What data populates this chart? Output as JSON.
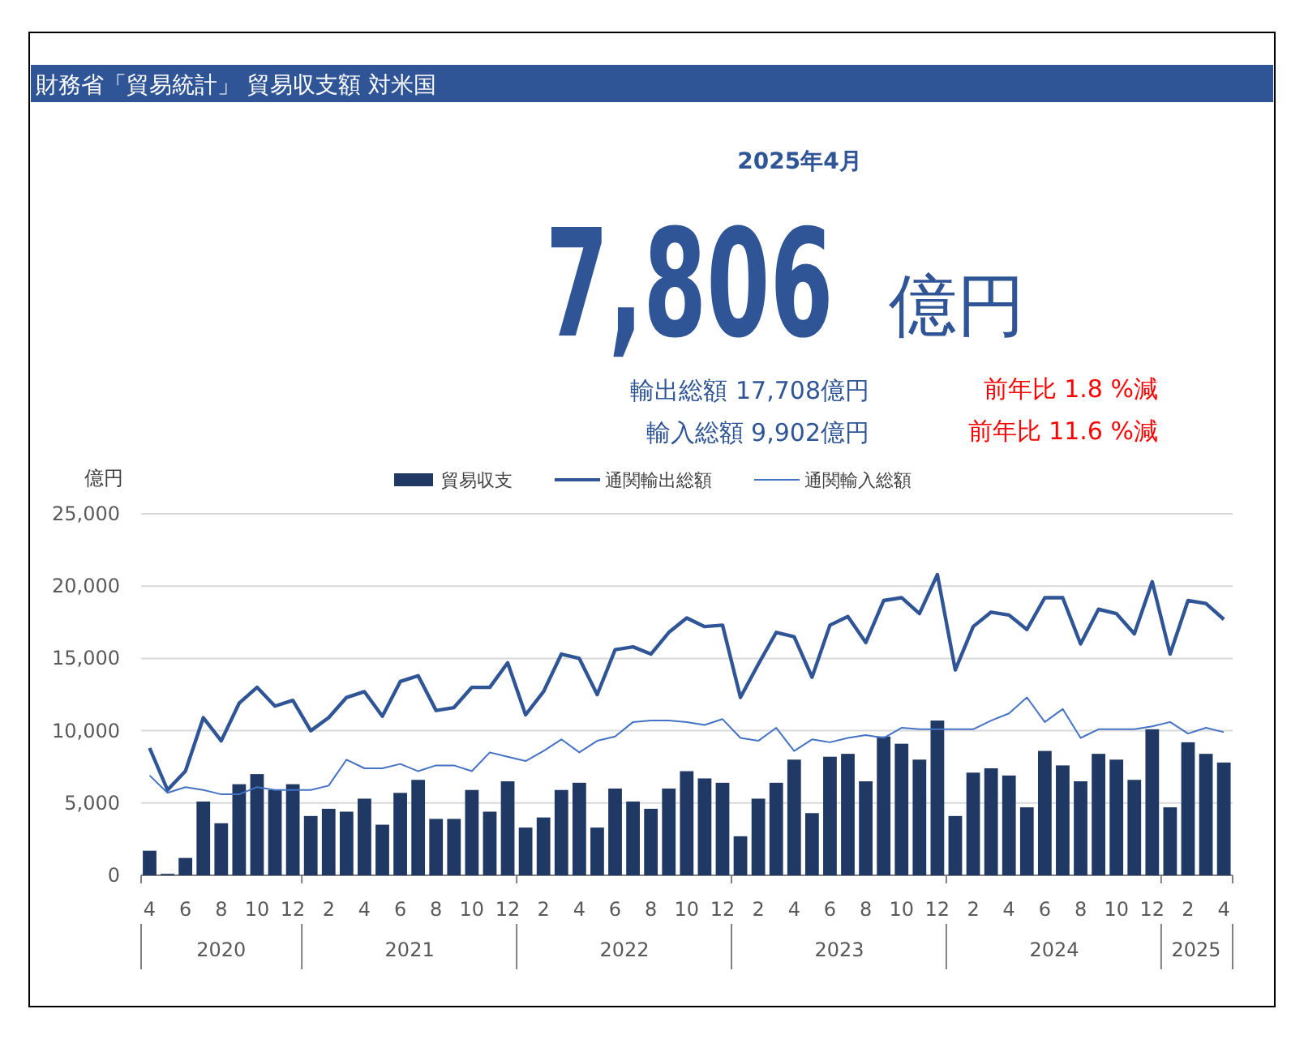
{
  "chart_data": {
    "type": "bar",
    "title": "財務省「貿易統計」 貿易収支額 対米国",
    "subtitle": "2025年4月",
    "annotations": [
      "7,806",
      "億円",
      "輸出総額 17,708億円",
      "前年比 1.8 %減",
      "輸入総額 9,902億円",
      "前年比 11.6 %減"
    ],
    "ylabel": "億円",
    "x": [
      "2020-04",
      "2020-05",
      "2020-06",
      "2020-07",
      "2020-08",
      "2020-09",
      "2020-10",
      "2020-11",
      "2020-12",
      "2021-01",
      "2021-02",
      "2021-03",
      "2021-04",
      "2021-05",
      "2021-06",
      "2021-07",
      "2021-08",
      "2021-09",
      "2021-10",
      "2021-11",
      "2021-12",
      "2022-01",
      "2022-02",
      "2022-03",
      "2022-04",
      "2022-05",
      "2022-06",
      "2022-07",
      "2022-08",
      "2022-09",
      "2022-10",
      "2022-11",
      "2022-12",
      "2023-01",
      "2023-02",
      "2023-03",
      "2023-04",
      "2023-05",
      "2023-06",
      "2023-07",
      "2023-08",
      "2023-09",
      "2023-10",
      "2023-11",
      "2023-12",
      "2024-01",
      "2024-02",
      "2024-03",
      "2024-04",
      "2024-05",
      "2024-06",
      "2024-07",
      "2024-08",
      "2024-09",
      "2024-10",
      "2024-11",
      "2024-12",
      "2025-01",
      "2025-02",
      "2025-03",
      "2025-04"
    ],
    "series": [
      {
        "name": "貿易収支",
        "color": "#203864",
        "values": [
          1700,
          100,
          1200,
          5100,
          3600,
          6300,
          7000,
          5900,
          6300,
          4100,
          4600,
          4400,
          5300,
          3500,
          5700,
          6600,
          3900,
          3900,
          5900,
          4400,
          6500,
          3300,
          4000,
          5900,
          6400,
          3300,
          6000,
          5100,
          4600,
          6000,
          7200,
          6700,
          6400,
          2700,
          5300,
          6400,
          8000,
          4300,
          8200,
          8400,
          6500,
          9600,
          9100,
          8000,
          10700,
          4100,
          7100,
          7400,
          6900,
          4700,
          8600,
          7600,
          6500,
          8400,
          8000,
          6600,
          10100,
          4700,
          9200,
          8400,
          7800
        ]
      },
      {
        "name": "通関輸出総額",
        "type": "line",
        "color": "#2f5597",
        "values": [
          8800,
          5900,
          7200,
          10900,
          9300,
          11900,
          13000,
          11700,
          12100,
          10000,
          10900,
          12300,
          12700,
          11000,
          13400,
          13800,
          11400,
          11600,
          13000,
          13000,
          14700,
          11100,
          12700,
          15300,
          15000,
          12500,
          15600,
          15800,
          15300,
          16800,
          17800,
          17200,
          17300,
          12300,
          14600,
          16800,
          16500,
          13700,
          17300,
          17900,
          16100,
          19000,
          19200,
          18100,
          20800,
          14200,
          17200,
          18200,
          18000,
          17000,
          19200,
          19200,
          16000,
          18400,
          18100,
          16700,
          20300,
          15300,
          19000,
          18800,
          17700
        ]
      },
      {
        "name": "通関輸入総額",
        "type": "line",
        "color": "#4472c4",
        "values": [
          6900,
          5700,
          6100,
          5900,
          5600,
          5600,
          6100,
          5900,
          5900,
          5900,
          6200,
          8000,
          7400,
          7400,
          7700,
          7200,
          7600,
          7600,
          7200,
          8500,
          8200,
          7900,
          8600,
          9400,
          8500,
          9300,
          9600,
          10600,
          10700,
          10700,
          10600,
          10400,
          10800,
          9500,
          9300,
          10200,
          8600,
          9400,
          9200,
          9500,
          9700,
          9500,
          10200,
          10100,
          10100,
          10100,
          10100,
          10700,
          11200,
          12300,
          10600,
          11500,
          9500,
          10100,
          10100,
          10100,
          10300,
          10600,
          9800,
          10200,
          9900
        ]
      }
    ],
    "xticks": [
      {
        "value": "2020-04",
        "label": "4"
      },
      {
        "value": "2020-06",
        "label": "6"
      },
      {
        "value": "2020-08",
        "label": "8"
      },
      {
        "value": "2020-10",
        "label": "10"
      },
      {
        "value": "2020-12",
        "label": "12"
      },
      {
        "value": "2021-02",
        "label": "2"
      },
      {
        "value": "2021-04",
        "label": "4"
      },
      {
        "value": "2021-06",
        "label": "6"
      },
      {
        "value": "2021-08",
        "label": "8"
      },
      {
        "value": "2021-10",
        "label": "10"
      },
      {
        "value": "2021-12",
        "label": "12"
      },
      {
        "value": "2022-02",
        "label": "2"
      },
      {
        "value": "2022-04",
        "label": "4"
      },
      {
        "value": "2022-06",
        "label": "6"
      },
      {
        "value": "2022-08",
        "label": "8"
      },
      {
        "value": "2022-10",
        "label": "10"
      },
      {
        "value": "2022-12",
        "label": "12"
      },
      {
        "value": "2023-02",
        "label": "2"
      },
      {
        "value": "2023-04",
        "label": "4"
      },
      {
        "value": "2023-06",
        "label": "6"
      },
      {
        "value": "2023-08",
        "label": "8"
      },
      {
        "value": "2023-10",
        "label": "10"
      },
      {
        "value": "2023-12",
        "label": "12"
      },
      {
        "value": "2024-02",
        "label": "2"
      },
      {
        "value": "2024-04",
        "label": "4"
      },
      {
        "value": "2024-06",
        "label": "6"
      },
      {
        "value": "2024-08",
        "label": "8"
      },
      {
        "value": "2024-10",
        "label": "10"
      },
      {
        "value": "2024-12",
        "label": "12"
      },
      {
        "value": "2025-02",
        "label": "2"
      },
      {
        "value": "2025-04",
        "label": "4"
      }
    ],
    "xlim": [
      "2020-03-17",
      "2025-04-16"
    ],
    "x2lim": [
      "2020-03-17",
      "2025-04-16"
    ],
    "x2ticks": [
      {
        "value": "2020-08-01",
        "label": "2020"
      },
      {
        "value": "2021-06-17",
        "label": "2021"
      },
      {
        "value": "2022-06-17",
        "label": "2022"
      },
      {
        "value": "2023-06-17",
        "label": "2023"
      },
      {
        "value": "2024-06-17",
        "label": "2024"
      },
      {
        "value": "2025-02-15",
        "label": "2025"
      }
    ],
    "ylim": [
      0,
      25000
    ],
    "yticks": [
      0,
      {
        "value": 5000,
        "label": "5,000"
      },
      {
        "value": 10000,
        "label": "10,000"
      },
      {
        "value": 15000,
        "label": "15,000"
      },
      {
        "value": 20000,
        "label": "20,000"
      },
      {
        "value": 25000,
        "label": "25,000"
      }
    ],
    "grid": "y",
    "legend": "top"
  }
}
